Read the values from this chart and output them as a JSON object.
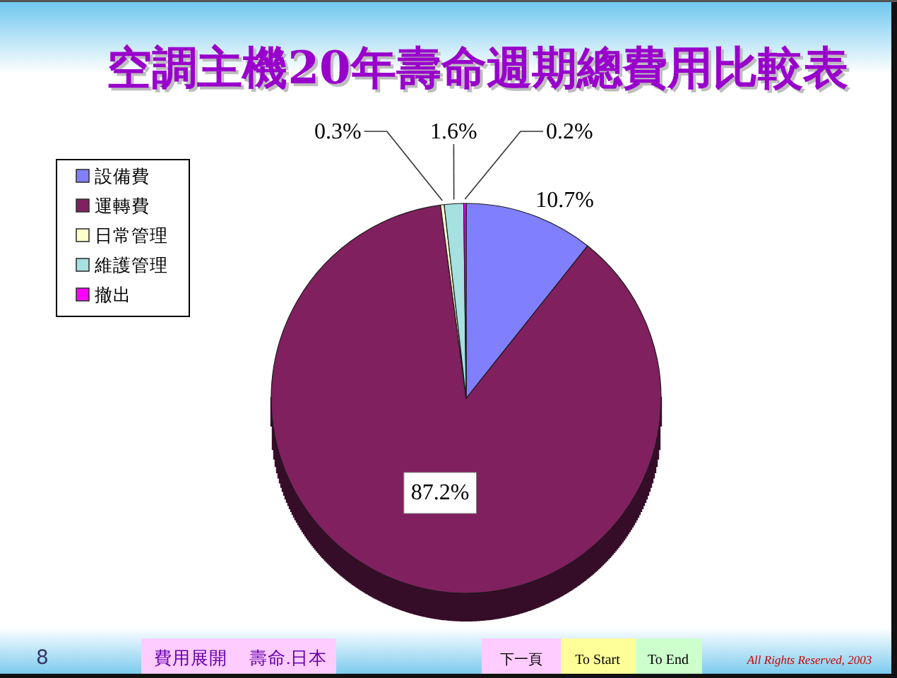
{
  "chart_data": {
    "type": "pie",
    "title": "空調主機20年壽命週期總費用比較表",
    "categories": [
      "設備費",
      "運轉費",
      "日常管理",
      "維護管理",
      "撤出"
    ],
    "values": [
      10.7,
      87.2,
      0.3,
      1.6,
      0.2
    ],
    "colors": [
      "#8080ff",
      "#80205f",
      "#ffffcc",
      "#a6e0e0",
      "#ff00ff"
    ],
    "value_labels": [
      "10.7%",
      "87.2%",
      "0.3%",
      "1.6%",
      "0.2%"
    ],
    "legend": "top left",
    "annotations": [
      "8",
      "費用展開",
      "壽命.日本",
      "下一頁",
      "To Start",
      "To End",
      "All Rights Reserved, 2003"
    ]
  }
}
